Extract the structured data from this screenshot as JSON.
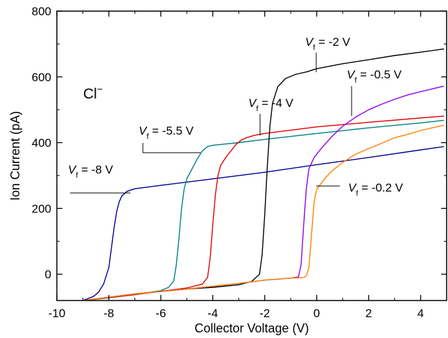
{
  "chart_data": {
    "type": "line",
    "title": "",
    "xlabel": "Collector Voltage (V)",
    "ylabel": "Ion Current (pA)",
    "xlim": [
      -10,
      5
    ],
    "ylim": [
      -80,
      800
    ],
    "xticks": [
      -10,
      -8,
      -6,
      -4,
      -2,
      0,
      2,
      4
    ],
    "yticks": [
      0,
      200,
      400,
      600,
      800
    ],
    "grid": false,
    "legend": "none",
    "species_label": {
      "base": "Cl",
      "sup": "−"
    },
    "series": [
      {
        "label_parts": {
          "v": "V",
          "sub": "f",
          "rest": " = -8 V"
        },
        "color": "#000090",
        "points": [
          [
            -9.0,
            -80
          ],
          [
            -8.6,
            -68
          ],
          [
            -8.4,
            -55
          ],
          [
            -8.2,
            -30
          ],
          [
            -8.0,
            20
          ],
          [
            -7.9,
            80
          ],
          [
            -7.8,
            140
          ],
          [
            -7.7,
            190
          ],
          [
            -7.6,
            220
          ],
          [
            -7.5,
            238
          ],
          [
            -7.3,
            252
          ],
          [
            -7.0,
            260
          ],
          [
            -6.0,
            270
          ],
          [
            -4.0,
            290
          ],
          [
            -2.0,
            310
          ],
          [
            0.0,
            333
          ],
          [
            2.0,
            355
          ],
          [
            4.0,
            378
          ],
          [
            4.9,
            388
          ]
        ]
      },
      {
        "label_parts": {
          "v": "V",
          "sub": "f",
          "rest": " = -5.5 V"
        },
        "color": "#008080",
        "points": [
          [
            -9.0,
            -80
          ],
          [
            -8.0,
            -72
          ],
          [
            -7.0,
            -62
          ],
          [
            -6.0,
            -50
          ],
          [
            -5.7,
            -40
          ],
          [
            -5.5,
            -20
          ],
          [
            -5.4,
            30
          ],
          [
            -5.3,
            110
          ],
          [
            -5.2,
            200
          ],
          [
            -5.1,
            260
          ],
          [
            -5.0,
            290
          ],
          [
            -4.8,
            320
          ],
          [
            -4.6,
            350
          ],
          [
            -4.4,
            375
          ],
          [
            -4.2,
            388
          ],
          [
            -4.0,
            392
          ],
          [
            -3.0,
            400
          ],
          [
            -2.0,
            410
          ],
          [
            0.0,
            428
          ],
          [
            2.0,
            445
          ],
          [
            4.0,
            460
          ],
          [
            4.9,
            468
          ]
        ]
      },
      {
        "label_parts": {
          "v": "V",
          "sub": "f",
          "rest": " = -4 V"
        },
        "color": "#e00000",
        "points": [
          [
            -9.0,
            -80
          ],
          [
            -7.0,
            -62
          ],
          [
            -6.0,
            -52
          ],
          [
            -5.0,
            -42
          ],
          [
            -4.4,
            -30
          ],
          [
            -4.2,
            -10
          ],
          [
            -4.1,
            50
          ],
          [
            -4.0,
            150
          ],
          [
            -3.9,
            240
          ],
          [
            -3.8,
            300
          ],
          [
            -3.7,
            330
          ],
          [
            -3.5,
            355
          ],
          [
            -3.3,
            375
          ],
          [
            -3.1,
            395
          ],
          [
            -2.9,
            408
          ],
          [
            -2.7,
            415
          ],
          [
            -2.4,
            422
          ],
          [
            -2.0,
            428
          ],
          [
            0.0,
            448
          ],
          [
            2.0,
            462
          ],
          [
            4.0,
            475
          ],
          [
            4.9,
            481
          ]
        ]
      },
      {
        "label_parts": {
          "v": "V",
          "sub": "f",
          "rest": " = -2 V"
        },
        "color": "#000000",
        "points": [
          [
            -9.0,
            -80
          ],
          [
            -7.0,
            -60
          ],
          [
            -5.0,
            -45
          ],
          [
            -4.0,
            -40
          ],
          [
            -3.0,
            -32
          ],
          [
            -2.5,
            -22
          ],
          [
            -2.2,
            0
          ],
          [
            -2.1,
            60
          ],
          [
            -2.0,
            180
          ],
          [
            -1.9,
            330
          ],
          [
            -1.8,
            450
          ],
          [
            -1.7,
            520
          ],
          [
            -1.5,
            570
          ],
          [
            -1.2,
            595
          ],
          [
            -0.8,
            608
          ],
          [
            -0.4,
            615
          ],
          [
            0.0,
            625
          ],
          [
            1.0,
            640
          ],
          [
            2.0,
            652
          ],
          [
            3.0,
            665
          ],
          [
            4.0,
            675
          ],
          [
            4.9,
            685
          ]
        ]
      },
      {
        "label_parts": {
          "v": "V",
          "sub": "f",
          "rest": " = -0.5 V"
        },
        "color": "#8a00f0",
        "points": [
          [
            -9.0,
            -80
          ],
          [
            -7.0,
            -60
          ],
          [
            -5.0,
            -45
          ],
          [
            -3.0,
            -28
          ],
          [
            -2.0,
            -18
          ],
          [
            -1.0,
            -12
          ],
          [
            -0.7,
            -8
          ],
          [
            -0.6,
            30
          ],
          [
            -0.5,
            150
          ],
          [
            -0.4,
            260
          ],
          [
            -0.3,
            320
          ],
          [
            -0.1,
            355
          ],
          [
            0.2,
            385
          ],
          [
            0.6,
            420
          ],
          [
            1.0,
            450
          ],
          [
            1.5,
            478
          ],
          [
            2.0,
            500
          ],
          [
            2.5,
            517
          ],
          [
            3.0,
            532
          ],
          [
            3.5,
            545
          ],
          [
            4.0,
            555
          ],
          [
            4.9,
            572
          ]
        ]
      },
      {
        "label_parts": {
          "v": "V",
          "sub": "f",
          "rest": " = -0.2 V"
        },
        "color": "#ff8000",
        "points": [
          [
            -9.0,
            -80
          ],
          [
            -7.0,
            -60
          ],
          [
            -5.0,
            -45
          ],
          [
            -3.0,
            -28
          ],
          [
            -2.0,
            -18
          ],
          [
            -1.0,
            -12
          ],
          [
            -0.5,
            -10
          ],
          [
            -0.4,
            -6
          ],
          [
            -0.3,
            20
          ],
          [
            -0.2,
            120
          ],
          [
            -0.1,
            220
          ],
          [
            0.0,
            258
          ],
          [
            0.3,
            290
          ],
          [
            0.6,
            315
          ],
          [
            1.0,
            340
          ],
          [
            1.5,
            365
          ],
          [
            2.0,
            382
          ],
          [
            2.5,
            398
          ],
          [
            3.0,
            415
          ],
          [
            3.5,
            425
          ],
          [
            4.0,
            437
          ],
          [
            4.9,
            453
          ]
        ]
      }
    ]
  }
}
